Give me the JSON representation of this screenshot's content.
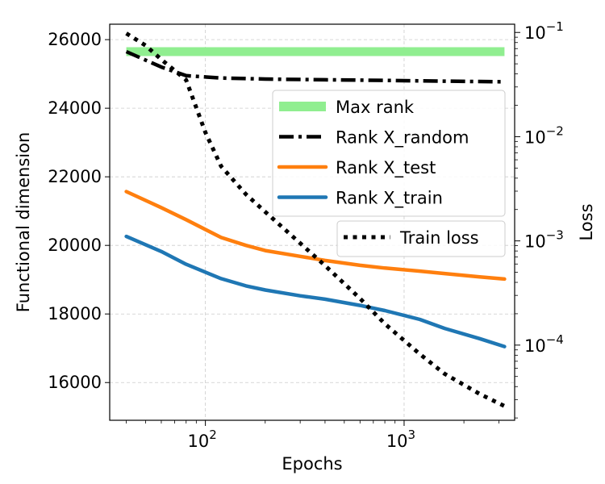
{
  "chart_data": {
    "type": "line",
    "xlabel": "Epochs",
    "ylabel": "Functional dimension",
    "y2label": "Loss",
    "xscale": "log",
    "y2scale": "log",
    "xlim": [
      33,
      3600
    ],
    "ylim": [
      14900,
      26450
    ],
    "y2lim": [
      1.9e-05,
      0.12
    ],
    "grid": true,
    "x_ticks": [
      {
        "value": 100,
        "base": "10",
        "exp": "2"
      },
      {
        "value": 1000,
        "base": "10",
        "exp": "3"
      }
    ],
    "y_ticks": [
      16000,
      18000,
      20000,
      22000,
      24000,
      26000
    ],
    "y2_ticks": [
      {
        "value": 0.1,
        "base": "10",
        "exp": "−1"
      },
      {
        "value": 0.01,
        "base": "10",
        "exp": "−2"
      },
      {
        "value": 0.001,
        "base": "10",
        "exp": "−3"
      },
      {
        "value": 0.0001,
        "base": "10",
        "exp": "−4"
      }
    ],
    "series": [
      {
        "name": "Max rank",
        "axis": "left",
        "color": "#90ee90",
        "style": "thick",
        "x": [
          40,
          3200
        ],
        "y": [
          25650,
          25650
        ]
      },
      {
        "name": "Rank X_random",
        "axis": "left",
        "color": "#000000",
        "style": "dashdot",
        "x": [
          40,
          60,
          80,
          120,
          200,
          400,
          800,
          1600,
          3200
        ],
        "y": [
          25650,
          25200,
          24950,
          24880,
          24850,
          24830,
          24810,
          24790,
          24770
        ]
      },
      {
        "name": "Rank X_test",
        "axis": "left",
        "color": "#ff7f0e",
        "style": "solid",
        "x": [
          40,
          60,
          80,
          120,
          160,
          200,
          300,
          400,
          600,
          800,
          1200,
          1600,
          2400,
          3200
        ],
        "y": [
          21570,
          21100,
          20750,
          20230,
          20000,
          19850,
          19680,
          19560,
          19420,
          19340,
          19250,
          19180,
          19080,
          19020
        ]
      },
      {
        "name": "Rank X_train",
        "axis": "left",
        "color": "#1f77b4",
        "style": "solid",
        "x": [
          40,
          60,
          80,
          120,
          160,
          200,
          300,
          400,
          600,
          800,
          1200,
          1600,
          2400,
          3200
        ],
        "y": [
          20260,
          19820,
          19450,
          19030,
          18820,
          18700,
          18530,
          18430,
          18250,
          18100,
          17840,
          17580,
          17280,
          17050
        ]
      },
      {
        "name": "Train loss",
        "axis": "right",
        "color": "#000000",
        "style": "dotted",
        "x": [
          40,
          50,
          60,
          80,
          100,
          120,
          160,
          200,
          300,
          400,
          600,
          800,
          1200,
          1600,
          2400,
          3200
        ],
        "y": [
          0.098,
          0.075,
          0.055,
          0.035,
          0.011,
          0.0052,
          0.0028,
          0.0019,
          0.00095,
          0.00058,
          0.00028,
          0.00016,
          8.2e-05,
          5.3e-05,
          3.4e-05,
          2.6e-05
        ]
      }
    ],
    "legends": [
      {
        "placement": "center-right",
        "entries": [
          "Max rank",
          "Rank X_random",
          "Rank X_test",
          "Rank X_train"
        ]
      },
      {
        "placement": "right",
        "entries": [
          "Train loss"
        ]
      }
    ]
  }
}
